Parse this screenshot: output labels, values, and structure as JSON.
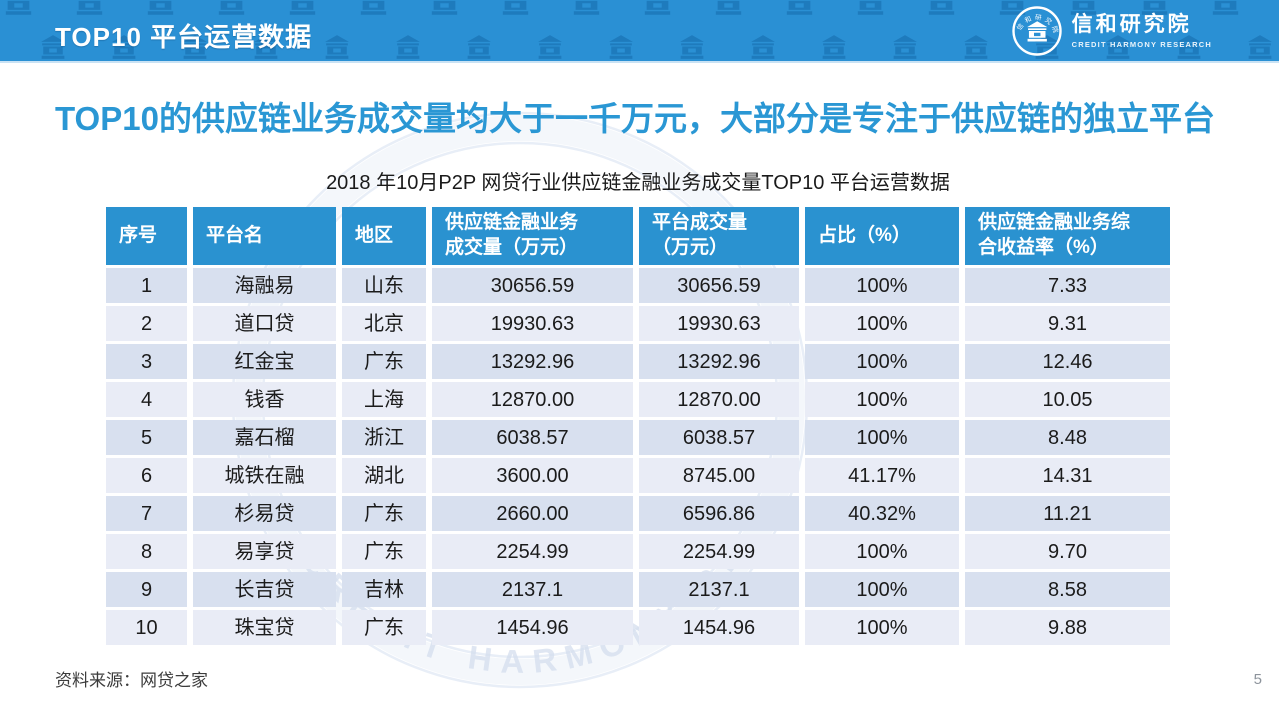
{
  "banner": {
    "title": "TOP10 平台运营数据",
    "logo_cn": "信和研究院",
    "logo_en": "CREDIT HARMONY RESEARCH"
  },
  "headline": "TOP10的供应链业务成交量均大于一千万元，大部分是专注于供应链的独立平台",
  "table": {
    "caption": "2018 年10月P2P 网贷行业供应链金融业务成交量TOP10 平台运营数据",
    "columns": [
      "序号",
      "平台名",
      "地区",
      "供应链金融业务\n成交量（万元）",
      "平台成交量\n（万元）",
      "占比（%）",
      "供应链金融业务综\n合收益率（%）"
    ],
    "rows": [
      [
        "1",
        "海融易",
        "山东",
        "30656.59",
        "30656.59",
        "100%",
        "7.33"
      ],
      [
        "2",
        "道口贷",
        "北京",
        "19930.63",
        "19930.63",
        "100%",
        "9.31"
      ],
      [
        "3",
        "红金宝",
        "广东",
        "13292.96",
        "13292.96",
        "100%",
        "12.46"
      ],
      [
        "4",
        "钱香",
        "上海",
        "12870.00",
        "12870.00",
        "100%",
        "10.05"
      ],
      [
        "5",
        "嘉石榴",
        "浙江",
        "6038.57",
        "6038.57",
        "100%",
        "8.48"
      ],
      [
        "6",
        "城铁在融",
        "湖北",
        "3600.00",
        "8745.00",
        "41.17%",
        "14.31"
      ],
      [
        "7",
        "杉易贷",
        "广东",
        "2660.00",
        "6596.86",
        "40.32%",
        "11.21"
      ],
      [
        "8",
        "易享贷",
        "广东",
        "2254.99",
        "2254.99",
        "100%",
        "9.70"
      ],
      [
        "9",
        "长吉贷",
        "吉林",
        "2137.1",
        "2137.1",
        "100%",
        "8.58"
      ],
      [
        "10",
        "珠宝贷",
        "广东",
        "1454.96",
        "1454.96",
        "100%",
        "9.88"
      ]
    ]
  },
  "watermark_text": "CREDIT HARMONY RESEARCH",
  "footer": {
    "source": "资料来源：网贷之家",
    "page_number": "5"
  },
  "colors": {
    "banner_blue": "#2a90d4",
    "table_header_blue": "#2a92d0",
    "row_odd": "#d8e0ef",
    "row_even": "#e9ecf6",
    "headline_blue": "#2a97d4"
  }
}
